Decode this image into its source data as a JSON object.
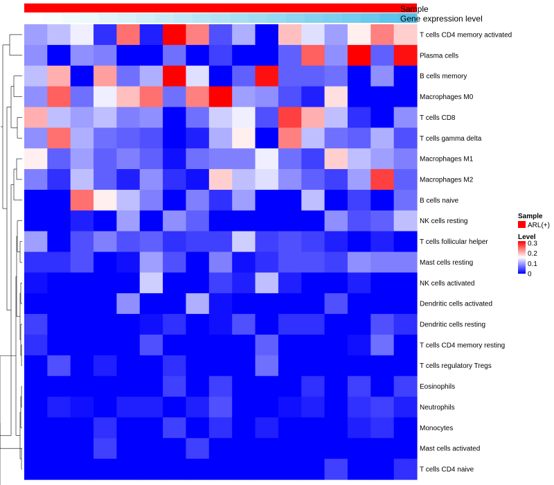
{
  "chart_data": {
    "type": "heatmap",
    "annotations": {
      "sample": "Sample",
      "gene_expression": "Gene expression level"
    },
    "gene_expression_values": [
      0.0,
      0.03,
      0.08,
      0.12,
      0.17,
      0.22,
      0.27,
      0.32,
      0.37,
      0.42,
      0.47,
      0.52,
      0.57,
      0.62,
      0.67,
      0.72,
      0.77,
      0.82,
      0.88,
      0.95,
      1.0
    ],
    "rows": [
      "T cells CD4 memory activated",
      "Plasma cells",
      "B cells memory",
      "Macrophages M0",
      "T cells CD8",
      "T cells gamma delta",
      "Macrophages M1",
      "Macrophages M2",
      "B cells naive",
      "NK cells resting",
      "T cells follicular helper",
      "Mast cells resting",
      "NK cells activated",
      "Dendritic cells activated",
      "Dendritic cells resting",
      "T cells CD4 memory resting",
      "T cells regulatory  Tregs",
      "Eosinophils",
      "Neutrophils",
      "Monocytes",
      "Mast cells activated",
      "T cells CD4 naive"
    ],
    "values": [
      [
        0.1,
        0.12,
        0.15,
        0.03,
        0.25,
        0.02,
        0.32,
        0.24,
        0.05,
        0.11,
        0.0,
        0.2,
        0.14,
        0.1,
        0.17,
        0.24,
        0.19
      ],
      [
        0.09,
        0.0,
        0.09,
        0.08,
        0.0,
        0.0,
        0.07,
        0.0,
        0.04,
        0.0,
        0.0,
        0.06,
        0.26,
        0.09,
        0.32,
        0.06,
        0.31
      ],
      [
        0.12,
        0.21,
        0.0,
        0.22,
        0.07,
        0.11,
        0.32,
        0.14,
        0.0,
        0.06,
        0.31,
        0.06,
        0.06,
        0.07,
        0.0,
        0.09,
        0.0
      ],
      [
        0.09,
        0.26,
        0.07,
        0.15,
        0.2,
        0.25,
        0.07,
        0.24,
        0.32,
        0.1,
        0.09,
        0.05,
        0.02,
        0.18,
        0.0,
        0.0,
        0.0
      ],
      [
        0.21,
        0.12,
        0.1,
        0.12,
        0.08,
        0.09,
        0.0,
        0.07,
        0.13,
        0.15,
        0.05,
        0.28,
        0.21,
        0.12,
        0.03,
        0.0,
        0.09
      ],
      [
        0.09,
        0.25,
        0.11,
        0.07,
        0.06,
        0.05,
        0.0,
        0.02,
        0.11,
        0.17,
        0.0,
        0.24,
        0.12,
        0.07,
        0.06,
        0.11,
        0.05
      ],
      [
        0.17,
        0.06,
        0.1,
        0.06,
        0.08,
        0.06,
        0.01,
        0.07,
        0.08,
        0.08,
        0.15,
        0.07,
        0.04,
        0.19,
        0.12,
        0.1,
        0.08
      ],
      [
        0.08,
        0.03,
        0.12,
        0.06,
        0.02,
        0.09,
        0.03,
        0.01,
        0.19,
        0.12,
        0.14,
        0.09,
        0.06,
        0.04,
        0.1,
        0.28,
        0.06
      ],
      [
        0.0,
        0.0,
        0.25,
        0.17,
        0.12,
        0.08,
        0.0,
        0.08,
        0.03,
        0.1,
        0.0,
        0.0,
        0.12,
        0.0,
        0.04,
        0.0,
        0.07
      ],
      [
        0.0,
        0.0,
        0.02,
        0.0,
        0.1,
        0.0,
        0.09,
        0.06,
        0.0,
        0.0,
        0.0,
        0.0,
        0.0,
        0.09,
        0.05,
        0.06,
        0.12
      ],
      [
        0.1,
        0.0,
        0.05,
        0.08,
        0.05,
        0.06,
        0.03,
        0.04,
        0.04,
        0.13,
        0.04,
        0.05,
        0.04,
        0.02,
        0.0,
        0.02,
        0.0
      ],
      [
        0.03,
        0.03,
        0.05,
        0.0,
        0.01,
        0.1,
        0.05,
        0.0,
        0.08,
        0.01,
        0.03,
        0.05,
        0.05,
        0.04,
        0.09,
        0.08,
        0.08
      ],
      [
        0.01,
        0.0,
        0.0,
        0.0,
        0.0,
        0.13,
        0.0,
        0.0,
        0.04,
        0.02,
        0.12,
        0.02,
        0.0,
        0.0,
        0.02,
        0.0,
        0.0
      ],
      [
        0.0,
        0.0,
        0.0,
        0.0,
        0.09,
        0.0,
        0.0,
        0.11,
        0.01,
        0.0,
        0.0,
        0.0,
        0.0,
        0.05,
        0.0,
        0.0,
        0.0
      ],
      [
        0.04,
        0.0,
        0.0,
        0.0,
        0.0,
        0.01,
        0.03,
        0.0,
        0.01,
        0.05,
        0.0,
        0.03,
        0.03,
        0.0,
        0.0,
        0.05,
        0.03
      ],
      [
        0.03,
        0.0,
        0.0,
        0.0,
        0.0,
        0.05,
        0.0,
        0.0,
        0.0,
        0.0,
        0.06,
        0.0,
        0.0,
        0.0,
        0.01,
        0.07,
        0.0
      ],
      [
        0.0,
        0.05,
        0.0,
        0.02,
        0.0,
        0.0,
        0.03,
        0.0,
        0.0,
        0.0,
        0.07,
        0.0,
        0.0,
        0.0,
        0.0,
        0.0,
        0.0
      ],
      [
        0.0,
        0.0,
        0.0,
        0.0,
        0.0,
        0.0,
        0.04,
        0.0,
        0.04,
        0.0,
        0.0,
        0.0,
        0.03,
        0.0,
        0.04,
        0.0,
        0.04
      ],
      [
        0.0,
        0.02,
        0.01,
        0.0,
        0.02,
        0.02,
        0.0,
        0.02,
        0.05,
        0.0,
        0.0,
        0.01,
        0.02,
        0.0,
        0.03,
        0.04,
        0.02
      ],
      [
        0.0,
        0.0,
        0.0,
        0.03,
        0.0,
        0.0,
        0.04,
        0.0,
        0.03,
        0.0,
        0.02,
        0.0,
        0.0,
        0.0,
        0.02,
        0.03,
        0.0
      ],
      [
        0.0,
        0.0,
        0.0,
        0.04,
        0.0,
        0.0,
        0.0,
        0.04,
        0.0,
        0.0,
        0.0,
        0.0,
        0.0,
        0.0,
        0.0,
        0.0,
        0.0
      ],
      [
        0.0,
        0.0,
        0.0,
        0.0,
        0.0,
        0.0,
        0.0,
        0.0,
        0.0,
        0.0,
        0.0,
        0.0,
        0.0,
        0.04,
        0.0,
        0.0,
        0.03
      ]
    ],
    "color_scale": {
      "min": 0,
      "max": 0.32,
      "low": "#0000ff",
      "mid": "#ffffff",
      "high": "#ff0000"
    },
    "sample_color": "#ff0000",
    "gene_low_color": "#ffffff",
    "gene_high_color": "#56c1ea",
    "legend": {
      "sample_title": "Sample",
      "sample_entry": "ARL(+)",
      "level_title": "Level",
      "level_ticks": [
        {
          "label": "0.3",
          "value": 0.3
        },
        {
          "label": "0.2",
          "value": 0.2
        },
        {
          "label": "0.1",
          "value": 0.1
        },
        {
          "label": "0",
          "value": 0
        }
      ]
    }
  }
}
